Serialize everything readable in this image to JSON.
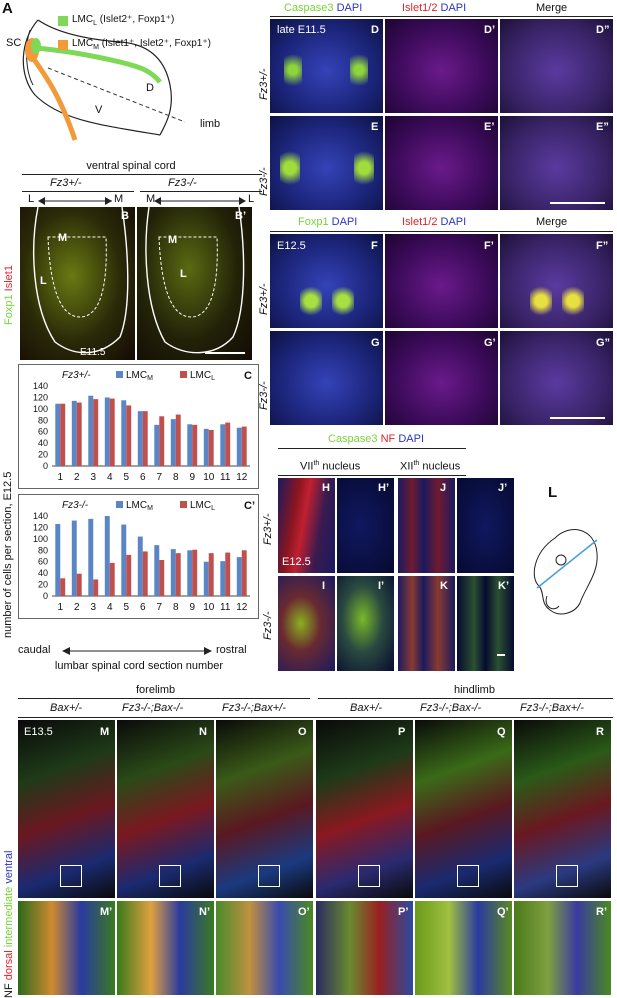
{
  "panelA": {
    "label": "A",
    "sc": "SC",
    "lmcl_text": "LMC",
    "lmcl_sub": "L",
    "lmcl_markers": " (Islet2⁺, Foxp1⁺)",
    "lmcm_text": "LMC",
    "lmcm_sub": "M",
    "lmcm_markers": " (Islet1⁺, Islet2⁺, Foxp1⁺)",
    "d": "D",
    "v": "V",
    "limb": "limb",
    "colors": {
      "lmcl": "#7ed957",
      "lmcm": "#f29a3a"
    }
  },
  "panelB": {
    "title": "ventral spinal cord",
    "geno_het": "Fz3+/-",
    "geno_ko": "Fz3-/-",
    "l1": "L",
    "m1": "M",
    "m2": "M",
    "l2": "L",
    "label_b": "B",
    "label_b2": "B’",
    "m_in": "M",
    "l_in": "L",
    "m_in2": "M",
    "l_in2": "L",
    "stage": "E11.5",
    "side_foxp1": "Foxp1",
    "side_islet1": "Islet1"
  },
  "panelC": {
    "ylabel": "number of cells per section, E12.5",
    "xlabel": "lumbar spinal cord section number",
    "caudal": "caudal",
    "rostral": "rostral"
  },
  "chart_data": [
    {
      "type": "bar",
      "panel": "C",
      "genotype": "Fz3+/-",
      "categories": [
        "1",
        "2",
        "3",
        "4",
        "5",
        "6",
        "7",
        "8",
        "9",
        "10",
        "11",
        "12"
      ],
      "series": [
        {
          "name": "LMCM",
          "color": "#5b86c5",
          "values": [
            109,
            114,
            123,
            120,
            115,
            96,
            72,
            82,
            73,
            65,
            73,
            67
          ]
        },
        {
          "name": "LMCL",
          "color": "#c0504d",
          "values": [
            109,
            111,
            117,
            118,
            106,
            96,
            87,
            90,
            72,
            63,
            76,
            69
          ]
        }
      ],
      "yticks": [
        0,
        20,
        40,
        60,
        80,
        100,
        120,
        140
      ],
      "ylim": [
        0,
        140
      ]
    },
    {
      "type": "bar",
      "panel": "C’",
      "genotype": "Fz3-/-",
      "categories": [
        "1",
        "2",
        "3",
        "4",
        "5",
        "6",
        "7",
        "8",
        "9",
        "10",
        "11",
        "12"
      ],
      "series": [
        {
          "name": "LMCM",
          "color": "#5b86c5",
          "values": [
            126,
            132,
            135,
            140,
            125,
            104,
            89,
            82,
            80,
            60,
            61,
            68
          ]
        },
        {
          "name": "LMCL",
          "color": "#c0504d",
          "values": [
            31,
            39,
            29,
            58,
            72,
            78,
            63,
            75,
            81,
            75,
            76,
            80
          ]
        }
      ],
      "yticks": [
        0,
        20,
        40,
        60,
        80,
        100,
        120,
        140
      ],
      "ylim": [
        0,
        140
      ]
    }
  ],
  "panelsDG": {
    "hdr1_a": "Caspase3",
    "hdr1_b": " DAPI",
    "hdr2_a": "Islet1/2",
    "hdr2_b": " DAPI",
    "hdr3": "Merge",
    "hdr4_a": "Foxp1",
    "hdr4_b": " DAPI",
    "hdr5_a": "Islet1/2",
    "hdr5_b": " DAPI",
    "hdr6": "Merge",
    "row_het": "Fz3+/-",
    "row_ko": "Fz3-/-",
    "row_het2": "Fz3+/-",
    "row_ko2": "Fz3-/-",
    "stage1": "late E11.5",
    "stage2": "E12.5",
    "labels": [
      "D",
      "D’",
      "D”",
      "E",
      "E’",
      "E”",
      "F",
      "F’",
      "F”",
      "G",
      "G’",
      "G”"
    ]
  },
  "panelsHK": {
    "hdr_a": "Caspase3",
    "hdr_b": " NF",
    "hdr_c": " DAPI",
    "vii": "VII",
    "vii_sup": "th",
    "vii_rest": " nucleus",
    "xii": "XII",
    "xii_sup": "th",
    "xii_rest": " nucleus",
    "row_het": "Fz3+/-",
    "row_ko": "Fz3-/-",
    "stage": "E12.5",
    "labels": [
      "H",
      "H’",
      "J",
      "J’",
      "I",
      "I’",
      "K",
      "K’"
    ],
    "label_l": "L"
  },
  "panelsMR": {
    "forelimb": "forelimb",
    "hindlimb": "hindlimb",
    "genos": [
      "Bax+/-",
      "Fz3-/-;Bax-/-",
      "Fz3-/-;Bax+/-",
      "Bax+/-",
      "Fz3-/-;Bax-/-",
      "Fz3-/-;Bax+/-"
    ],
    "stage": "E13.5",
    "labels": [
      "M",
      "N",
      "O",
      "P",
      "Q",
      "R"
    ],
    "labels2": [
      "M’",
      "N’",
      "O’",
      "P’",
      "Q’",
      "R’"
    ],
    "side_nf": "NF",
    "side_dorsal": "dorsal",
    "side_intermediate": "intermediate",
    "side_ventral": "ventral"
  }
}
